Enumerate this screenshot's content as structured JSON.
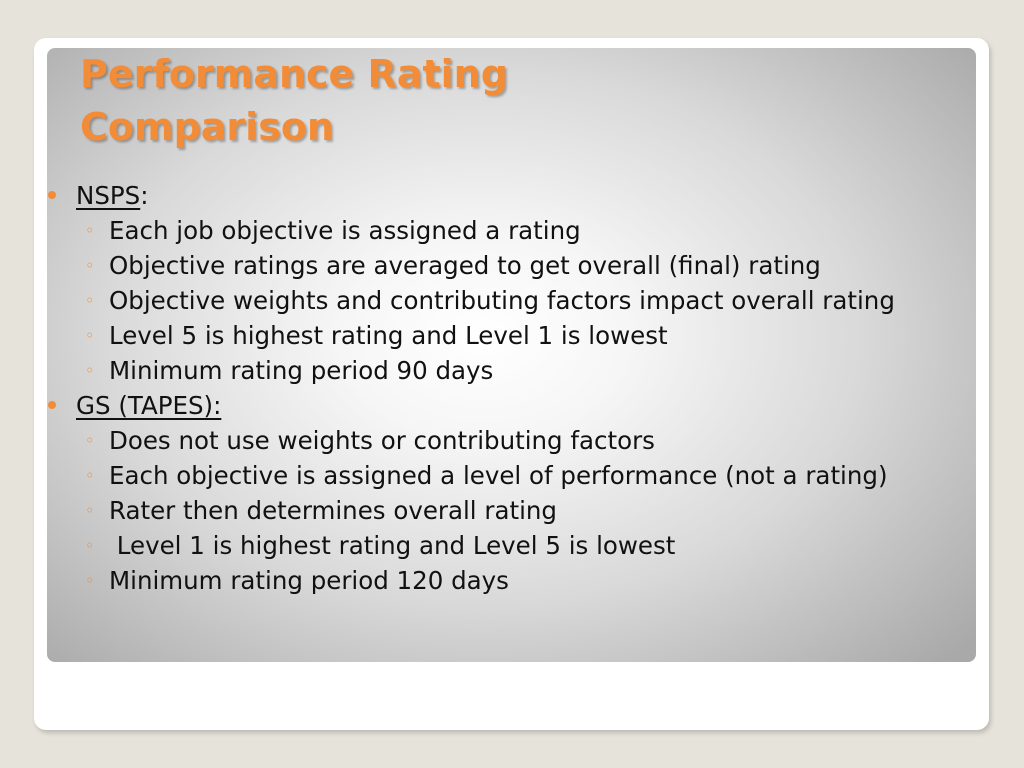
{
  "title": {
    "line1": "Performance Rating",
    "line2": "Comparison"
  },
  "colors": {
    "accent": "#f38c37",
    "background": "#e6e3da",
    "text": "#111111"
  },
  "sections": [
    {
      "label": "NSPS",
      "suffix": ":",
      "items": [
        "Each job objective is assigned a rating",
        "Objective ratings are averaged to get overall (final) rating",
        "Objective weights and contributing factors impact overall rating",
        "Level 5 is highest rating and Level 1 is lowest",
        "Minimum rating period 90 days"
      ]
    },
    {
      "label": "GS (TAPES):",
      "suffix": "",
      "items": [
        "Does not use weights or contributing factors",
        "Each objective is assigned a level of performance (not a rating)",
        "Rater then determines overall rating",
        " Level 1 is highest rating and Level 5 is lowest",
        "Minimum rating period 120 days"
      ]
    }
  ]
}
